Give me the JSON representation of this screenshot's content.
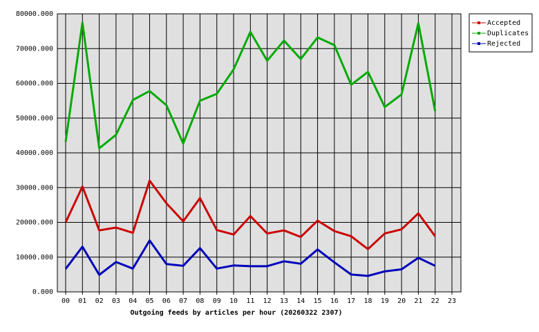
{
  "chart_data": {
    "type": "line",
    "xlabel": "Outgoing feeds by articles per hour (20260322 2307)",
    "categories": [
      "00",
      "01",
      "02",
      "03",
      "04",
      "05",
      "06",
      "07",
      "08",
      "09",
      "10",
      "11",
      "12",
      "13",
      "14",
      "15",
      "16",
      "17",
      "18",
      "19",
      "20",
      "21",
      "22",
      "23"
    ],
    "series": [
      {
        "name": "Accepted",
        "color": "#cc0000",
        "values": [
          20000,
          30300,
          17700,
          18500,
          17000,
          32000,
          25500,
          20300,
          27000,
          17800,
          16500,
          21800,
          16800,
          17700,
          15800,
          20500,
          17500,
          16000,
          12300,
          16800,
          18000,
          22600,
          16000,
          null
        ]
      },
      {
        "name": "Duplicates",
        "color": "#00aa00",
        "values": [
          43200,
          77500,
          41300,
          45200,
          55200,
          57800,
          53700,
          42700,
          55000,
          57000,
          64000,
          74800,
          66500,
          72300,
          67000,
          73200,
          71000,
          59600,
          63300,
          53200,
          56800,
          77300,
          52000,
          null
        ]
      },
      {
        "name": "Rejected",
        "color": "#0000bb",
        "values": [
          6600,
          13000,
          4900,
          8600,
          6700,
          14800,
          8000,
          7500,
          12600,
          6700,
          7600,
          7400,
          7400,
          8800,
          8100,
          12200,
          8500,
          5000,
          4600,
          5900,
          6500,
          9800,
          7500,
          null
        ]
      }
    ],
    "ylim": [
      0,
      80000
    ],
    "yticks": [
      {
        "value": 0,
        "label": "0.000"
      },
      {
        "value": 10000,
        "label": "10000.000"
      },
      {
        "value": 20000,
        "label": "20000.000"
      },
      {
        "value": 30000,
        "label": "30000.000"
      },
      {
        "value": 40000,
        "label": "40000.000"
      },
      {
        "value": 50000,
        "label": "50000.000"
      },
      {
        "value": 60000,
        "label": "60000.000"
      },
      {
        "value": 70000,
        "label": "70000.000"
      },
      {
        "value": 80000,
        "label": "80000.000"
      }
    ],
    "grid": true,
    "legend": "top-right"
  }
}
